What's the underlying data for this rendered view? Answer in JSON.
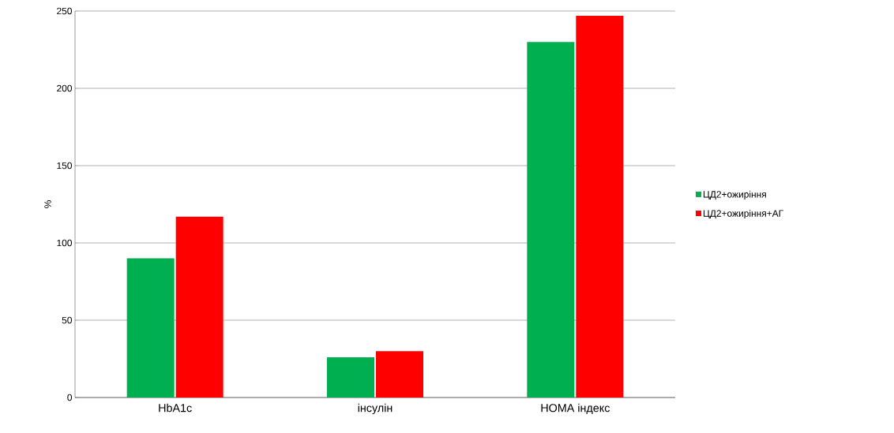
{
  "chart_data": {
    "type": "bar",
    "categories": [
      "HbA1c",
      "інсулін",
      "HOMA індекс"
    ],
    "series": [
      {
        "name": "ЦД2+ожиріння",
        "color": "#00b050",
        "values": [
          90,
          26,
          230
        ]
      },
      {
        "name": "ЦД2+ожиріння+АГ",
        "color": "#ff0000",
        "values": [
          117,
          30,
          247
        ]
      }
    ],
    "ylabel": "%",
    "ylim": [
      0,
      250
    ],
    "yticks": [
      0,
      50,
      100,
      150,
      200,
      250
    ],
    "grid": "y",
    "legend": "right"
  }
}
